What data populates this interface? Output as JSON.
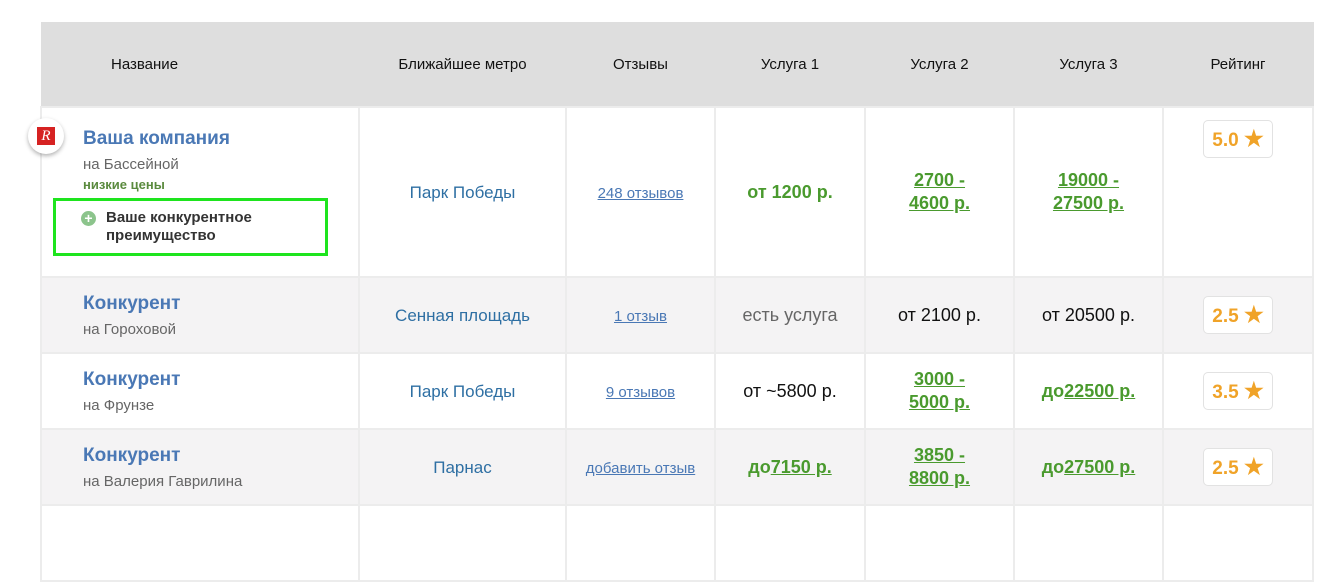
{
  "headers": [
    "Название",
    "Ближайшее метро",
    "Отзывы",
    "Услуга 1",
    "Услуга 2",
    "Услуга 3",
    "Рейтинг"
  ],
  "rows": [
    {
      "name": "Ваша компания",
      "address": "на Бассейной",
      "tag": "низкие цены",
      "advantage": "Ваше конкурентное преимущество",
      "metro": "Парк Победы",
      "reviews": "248 отзывов",
      "s1": {
        "pre": "",
        "link": "",
        "text": "от 1200 р."
      },
      "s2": {
        "pre": "",
        "link": "2700 - 4600 р.",
        "text": ""
      },
      "s3": {
        "pre": "",
        "link": "19000 - 27500 р.",
        "text": ""
      },
      "rating": "5.0"
    },
    {
      "name": "Конкурент",
      "address": "на Гороховой",
      "metro": "Сенная площадь",
      "reviews": "1 отзыв",
      "s1": {
        "pre": "",
        "link": "",
        "text": "есть услуга"
      },
      "s2": {
        "pre": "",
        "link": "",
        "text": "от 2100 р."
      },
      "s3": {
        "pre": "",
        "link": "",
        "text": "от 20500 р."
      },
      "rating": "2.5"
    },
    {
      "name": "Конкурент",
      "address": "на Фрунзе",
      "metro": "Парк Победы",
      "reviews": "9 отзывов",
      "s1": {
        "pre": "",
        "link": "",
        "text": "от ~5800 р."
      },
      "s2": {
        "pre": "",
        "link": "3000 - 5000 р.",
        "text": ""
      },
      "s3": {
        "pre": "до",
        "link": " 22500 р.",
        "text": ""
      },
      "rating": "3.5"
    },
    {
      "name": "Конкурент",
      "address": "на Валерия Гаврилина",
      "metro": "Парнас",
      "reviews": "добавить отзыв",
      "s1": {
        "pre": "до",
        "link": " 7150 р.",
        "text": ""
      },
      "s2": {
        "pre": "",
        "link": "3850 - 8800 р.",
        "text": ""
      },
      "s3": {
        "pre": "до",
        "link": " 27500 р.",
        "text": ""
      },
      "rating": "2.5"
    }
  ],
  "icons": {
    "logo": "company-logo-R",
    "advantage": "plus-circle-icon",
    "rating": "star-icon"
  },
  "colors": {
    "green": "#4a9a2e",
    "link": "#4a78b5",
    "rating": "#f0a328",
    "highlight": "#1ee41e"
  }
}
